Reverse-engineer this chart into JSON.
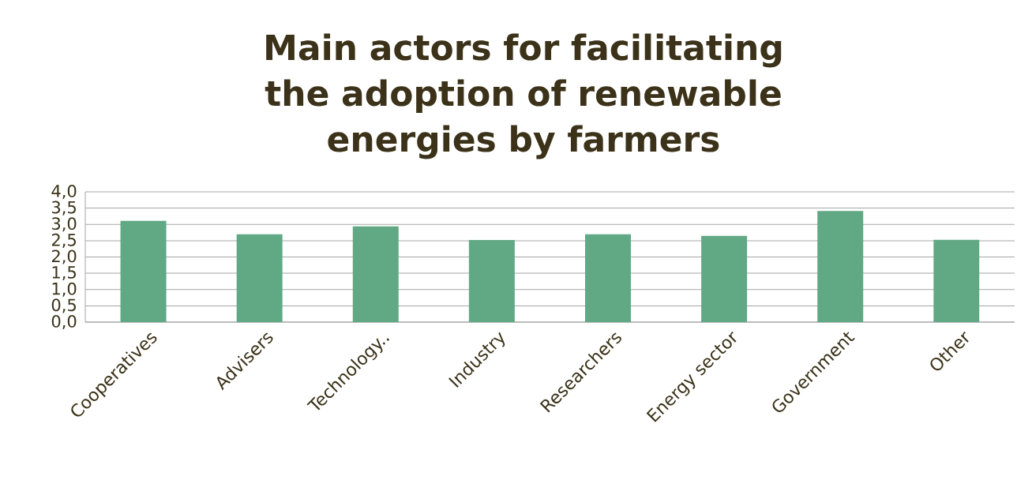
{
  "chart_data": {
    "type": "bar",
    "title": "Main actors for facilitating the adoption of renewable energies by farmers",
    "categories": [
      "Cooperatives",
      "Advisers",
      "Technology..",
      "Industry",
      "Researchers",
      "Energy sector",
      "Government",
      "Other"
    ],
    "values": [
      3.11,
      2.7,
      2.94,
      2.52,
      2.7,
      2.65,
      3.41,
      2.53
    ],
    "color": "#61a884",
    "ylim": [
      0,
      4
    ],
    "yticks": [
      {
        "value": 0,
        "label": "0,0"
      },
      {
        "value": 0.5,
        "label": "0,5"
      },
      {
        "value": 1,
        "label": "1,0"
      },
      {
        "value": 1.5,
        "label": "1,5"
      },
      {
        "value": 2,
        "label": "2,0"
      },
      {
        "value": 2.5,
        "label": "2,5"
      },
      {
        "value": 3,
        "label": "3,0"
      },
      {
        "value": 3.5,
        "label": "3,5"
      },
      {
        "value": 4,
        "label": "4,0"
      }
    ],
    "grid": "y"
  }
}
